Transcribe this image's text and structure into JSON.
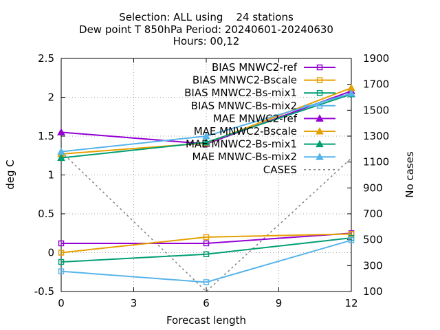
{
  "chart_data": {
    "type": "line",
    "title": [
      "Selection: ALL using    24 stations",
      "Dew point T 850hPa   Period: 20240601-20240630",
      "Hours: 00,12"
    ],
    "xlabel": "Forecast length",
    "ylabel": "deg C",
    "y2label": "No cases",
    "xlim": [
      0,
      12
    ],
    "ylim": [
      -0.5,
      2.5
    ],
    "y2lim": [
      100,
      1900
    ],
    "xticks": [
      0,
      3,
      6,
      9,
      12
    ],
    "yticks": [
      -0.5,
      0,
      0.5,
      1,
      1.5,
      2,
      2.5
    ],
    "y2ticks": [
      100,
      300,
      500,
      700,
      900,
      1100,
      1300,
      1500,
      1700,
      1900
    ],
    "ytick_labels": [
      "-0.5",
      "0",
      "0.5",
      "1",
      "1.5",
      "2",
      "2.5"
    ],
    "xtick_labels": [
      "0",
      "3",
      "6",
      "9",
      "12"
    ],
    "y2tick_labels": [
      "100",
      "300",
      "500",
      "700",
      "900",
      "1100",
      "1300",
      "1500",
      "1700",
      "1900"
    ],
    "grid": true,
    "legend_position": "top-right",
    "x": [
      0,
      6,
      12
    ],
    "series": [
      {
        "name": "BIAS MNWC2-ref",
        "values": [
          0.12,
          0.12,
          0.25
        ],
        "color": "#9400d3",
        "marker": "square",
        "axis": "y1"
      },
      {
        "name": "BIAS MNWC2-Bscale",
        "values": [
          0.0,
          0.2,
          0.24
        ],
        "color": "#e69f00",
        "marker": "square",
        "axis": "y1"
      },
      {
        "name": "BIAS MNWC2-Bs-mix1",
        "values": [
          -0.12,
          -0.02,
          0.19
        ],
        "color": "#009e73",
        "marker": "square",
        "axis": "y1"
      },
      {
        "name": "BIAS MNWC-Bs-mix2",
        "values": [
          -0.24,
          -0.38,
          0.16
        ],
        "color": "#56b4e9",
        "marker": "square",
        "axis": "y1"
      },
      {
        "name": "MAE MNWC2-ref",
        "values": [
          1.55,
          1.4,
          2.08
        ],
        "color": "#9400d3",
        "marker": "triangle",
        "axis": "y1"
      },
      {
        "name": "MAE MNWC2-Bscale",
        "values": [
          1.27,
          1.41,
          2.12
        ],
        "color": "#e69f00",
        "marker": "triangle",
        "axis": "y1"
      },
      {
        "name": "MAE MNWC2-Bs-mix1",
        "values": [
          1.22,
          1.42,
          2.04
        ],
        "color": "#009e73",
        "marker": "triangle",
        "axis": "y1"
      },
      {
        "name": "MAE MNWC-Bs-mix2",
        "values": [
          1.3,
          1.5,
          2.05
        ],
        "color": "#56b4e9",
        "marker": "triangle",
        "axis": "y1"
      },
      {
        "name": "CASES",
        "values": [
          1180,
          100,
          1130
        ],
        "color": "#808080",
        "marker": "none",
        "dashed": true,
        "axis": "y2"
      }
    ]
  }
}
